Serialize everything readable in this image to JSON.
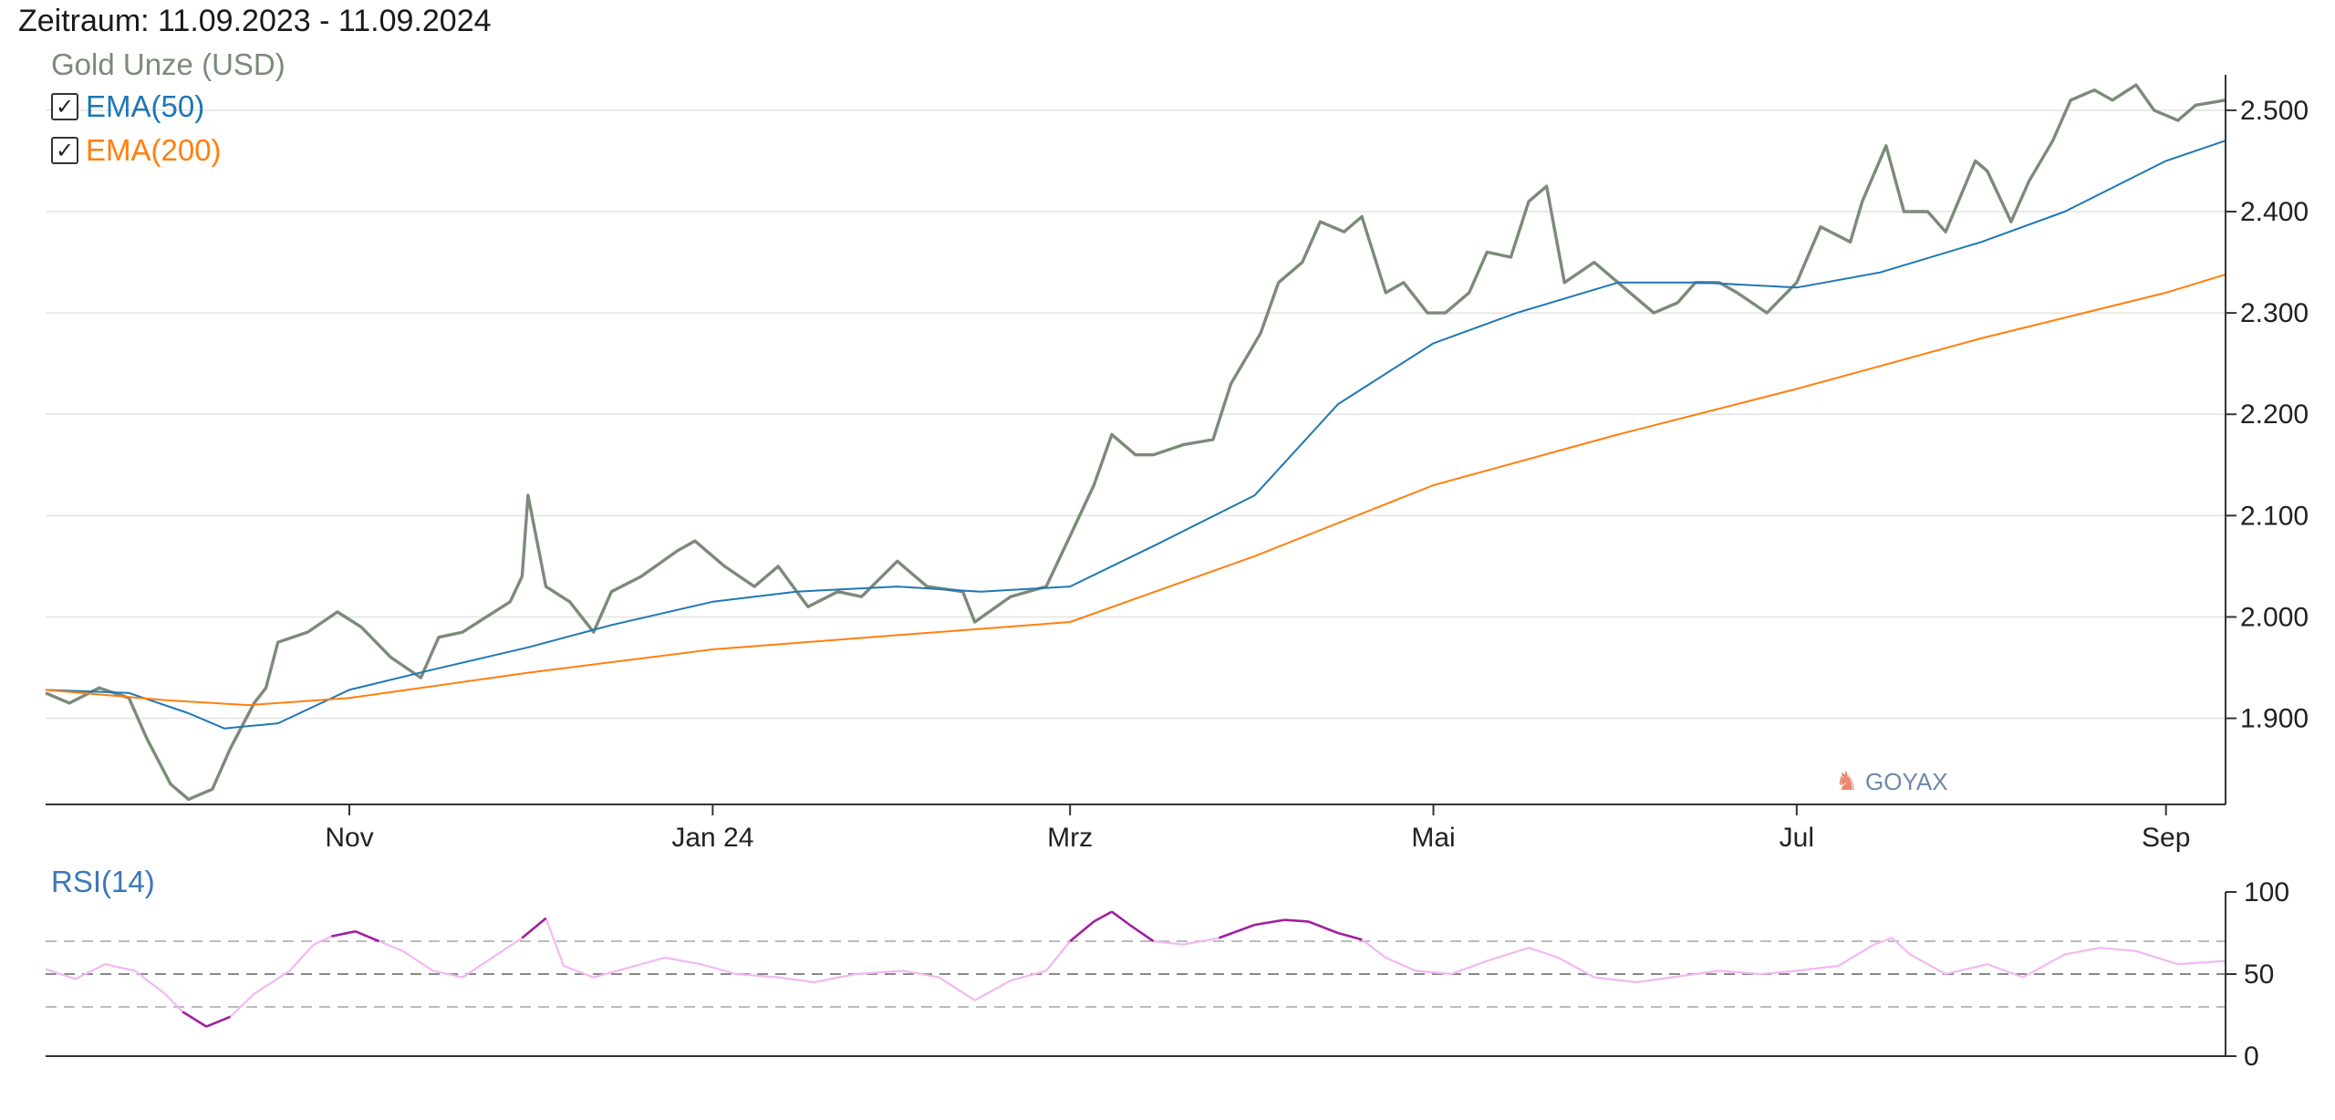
{
  "period_label": "Zeitraum: 11.09.2023 - 11.09.2024",
  "legend": {
    "main_series": {
      "label": "Gold Unze (USD)",
      "color": "#7c8a7a"
    },
    "ema50": {
      "label": "EMA(50)",
      "color": "#1f77b4",
      "checked": true
    },
    "ema200": {
      "label": "EMA(200)",
      "color": "#ff7f0e",
      "checked": true
    },
    "rsi": {
      "label": "RSI(14)",
      "color": "#3b78b8"
    }
  },
  "watermark": "GOYAX",
  "chart_data": [
    {
      "type": "line",
      "title": "",
      "ylim": [
        1815,
        2535
      ],
      "x_range": [
        "2023-09-11",
        "2024-09-11"
      ],
      "y_ticks": [
        {
          "value": 1900,
          "label": "1.900"
        },
        {
          "value": 2000,
          "label": "2.000"
        },
        {
          "value": 2100,
          "label": "2.100"
        },
        {
          "value": 2200,
          "label": "2.200"
        },
        {
          "value": 2300,
          "label": "2.300"
        },
        {
          "value": 2400,
          "label": "2.400"
        },
        {
          "value": 2500,
          "label": "2.500"
        }
      ],
      "x_ticks": [
        {
          "date": "2023-11-01",
          "label": "Nov"
        },
        {
          "date": "2024-01-01",
          "label": "Jan 24"
        },
        {
          "date": "2024-03-01",
          "label": "Mrz"
        },
        {
          "date": "2024-05-01",
          "label": "Mai"
        },
        {
          "date": "2024-07-01",
          "label": "Jul"
        },
        {
          "date": "2024-09-01",
          "label": "Sep"
        }
      ],
      "grid": true,
      "series": [
        {
          "name": "Gold Unze (USD)",
          "color": "#7c8a7a",
          "width": 3.4,
          "points": [
            [
              "2023-09-11",
              1925
            ],
            [
              "2023-09-15",
              1915
            ],
            [
              "2023-09-20",
              1930
            ],
            [
              "2023-09-25",
              1920
            ],
            [
              "2023-09-28",
              1880
            ],
            [
              "2023-10-02",
              1835
            ],
            [
              "2023-10-05",
              1820
            ],
            [
              "2023-10-09",
              1830
            ],
            [
              "2023-10-12",
              1870
            ],
            [
              "2023-10-16",
              1915
            ],
            [
              "2023-10-18",
              1930
            ],
            [
              "2023-10-20",
              1975
            ],
            [
              "2023-10-25",
              1985
            ],
            [
              "2023-10-30",
              2005
            ],
            [
              "2023-11-03",
              1990
            ],
            [
              "2023-11-08",
              1960
            ],
            [
              "2023-11-13",
              1940
            ],
            [
              "2023-11-16",
              1980
            ],
            [
              "2023-11-20",
              1985
            ],
            [
              "2023-11-24",
              2000
            ],
            [
              "2023-11-28",
              2015
            ],
            [
              "2023-11-30",
              2040
            ],
            [
              "2023-12-01",
              2120
            ],
            [
              "2023-12-04",
              2030
            ],
            [
              "2023-12-08",
              2015
            ],
            [
              "2023-12-12",
              1985
            ],
            [
              "2023-12-15",
              2025
            ],
            [
              "2023-12-20",
              2040
            ],
            [
              "2023-12-26",
              2065
            ],
            [
              "2023-12-29",
              2075
            ],
            [
              "2024-01-03",
              2050
            ],
            [
              "2024-01-08",
              2030
            ],
            [
              "2024-01-12",
              2050
            ],
            [
              "2024-01-17",
              2010
            ],
            [
              "2024-01-22",
              2025
            ],
            [
              "2024-01-26",
              2020
            ],
            [
              "2024-02-01",
              2055
            ],
            [
              "2024-02-06",
              2030
            ],
            [
              "2024-02-12",
              2025
            ],
            [
              "2024-02-14",
              1995
            ],
            [
              "2024-02-20",
              2020
            ],
            [
              "2024-02-26",
              2030
            ],
            [
              "2024-03-01",
              2080
            ],
            [
              "2024-03-05",
              2130
            ],
            [
              "2024-03-08",
              2180
            ],
            [
              "2024-03-12",
              2160
            ],
            [
              "2024-03-15",
              2160
            ],
            [
              "2024-03-20",
              2170
            ],
            [
              "2024-03-25",
              2175
            ],
            [
              "2024-03-28",
              2230
            ],
            [
              "2024-04-02",
              2280
            ],
            [
              "2024-04-05",
              2330
            ],
            [
              "2024-04-09",
              2350
            ],
            [
              "2024-04-12",
              2390
            ],
            [
              "2024-04-16",
              2380
            ],
            [
              "2024-04-19",
              2395
            ],
            [
              "2024-04-23",
              2320
            ],
            [
              "2024-04-26",
              2330
            ],
            [
              "2024-04-30",
              2300
            ],
            [
              "2024-05-03",
              2300
            ],
            [
              "2024-05-07",
              2320
            ],
            [
              "2024-05-10",
              2360
            ],
            [
              "2024-05-14",
              2355
            ],
            [
              "2024-05-17",
              2410
            ],
            [
              "2024-05-20",
              2425
            ],
            [
              "2024-05-23",
              2330
            ],
            [
              "2024-05-28",
              2350
            ],
            [
              "2024-06-03",
              2320
            ],
            [
              "2024-06-07",
              2300
            ],
            [
              "2024-06-11",
              2310
            ],
            [
              "2024-06-14",
              2330
            ],
            [
              "2024-06-18",
              2330
            ],
            [
              "2024-06-21",
              2320
            ],
            [
              "2024-06-26",
              2300
            ],
            [
              "2024-07-01",
              2330
            ],
            [
              "2024-07-05",
              2385
            ],
            [
              "2024-07-10",
              2370
            ],
            [
              "2024-07-12",
              2410
            ],
            [
              "2024-07-16",
              2465
            ],
            [
              "2024-07-19",
              2400
            ],
            [
              "2024-07-23",
              2400
            ],
            [
              "2024-07-26",
              2380
            ],
            [
              "2024-07-31",
              2450
            ],
            [
              "2024-08-02",
              2440
            ],
            [
              "2024-08-06",
              2390
            ],
            [
              "2024-08-09",
              2430
            ],
            [
              "2024-08-13",
              2470
            ],
            [
              "2024-08-16",
              2510
            ],
            [
              "2024-08-20",
              2520
            ],
            [
              "2024-08-23",
              2510
            ],
            [
              "2024-08-27",
              2525
            ],
            [
              "2024-08-30",
              2500
            ],
            [
              "2024-09-03",
              2490
            ],
            [
              "2024-09-06",
              2505
            ],
            [
              "2024-09-11",
              2510
            ]
          ]
        },
        {
          "name": "EMA(50)",
          "color": "#1f77b4",
          "width": 2,
          "points": [
            [
              "2023-09-11",
              1928
            ],
            [
              "2023-09-25",
              1925
            ],
            [
              "2023-10-05",
              1905
            ],
            [
              "2023-10-11",
              1890
            ],
            [
              "2023-10-20",
              1895
            ],
            [
              "2023-11-01",
              1928
            ],
            [
              "2023-11-15",
              1948
            ],
            [
              "2023-12-01",
              1970
            ],
            [
              "2023-12-15",
              1992
            ],
            [
              "2024-01-01",
              2015
            ],
            [
              "2024-01-15",
              2025
            ],
            [
              "2024-02-01",
              2030
            ],
            [
              "2024-02-15",
              2025
            ],
            [
              "2024-03-01",
              2030
            ],
            [
              "2024-03-15",
              2070
            ],
            [
              "2024-04-01",
              2120
            ],
            [
              "2024-04-15",
              2210
            ],
            [
              "2024-05-01",
              2270
            ],
            [
              "2024-05-15",
              2300
            ],
            [
              "2024-06-01",
              2330
            ],
            [
              "2024-06-15",
              2330
            ],
            [
              "2024-07-01",
              2325
            ],
            [
              "2024-07-15",
              2340
            ],
            [
              "2024-08-01",
              2370
            ],
            [
              "2024-08-15",
              2400
            ],
            [
              "2024-09-01",
              2450
            ],
            [
              "2024-09-11",
              2470
            ]
          ]
        },
        {
          "name": "EMA(200)",
          "color": "#ff7f0e",
          "width": 2,
          "points": [
            [
              "2023-09-11",
              1928
            ],
            [
              "2023-10-01",
              1918
            ],
            [
              "2023-10-15",
              1913
            ],
            [
              "2023-11-01",
              1920
            ],
            [
              "2023-12-01",
              1945
            ],
            [
              "2024-01-01",
              1968
            ],
            [
              "2024-02-01",
              1982
            ],
            [
              "2024-03-01",
              1995
            ],
            [
              "2024-04-01",
              2060
            ],
            [
              "2024-05-01",
              2130
            ],
            [
              "2024-06-01",
              2180
            ],
            [
              "2024-07-01",
              2225
            ],
            [
              "2024-08-01",
              2275
            ],
            [
              "2024-09-01",
              2320
            ],
            [
              "2024-09-11",
              2338
            ]
          ]
        }
      ]
    },
    {
      "type": "line",
      "title": "",
      "ylim": [
        0,
        100
      ],
      "x_range": [
        "2023-09-11",
        "2024-09-11"
      ],
      "y_ticks": [
        {
          "value": 0,
          "label": "0"
        },
        {
          "value": 50,
          "label": "50"
        },
        {
          "value": 100,
          "label": "100"
        }
      ],
      "reference_lines": [
        30,
        50,
        70
      ],
      "series": [
        {
          "name": "RSI(14)",
          "color": "#f2b8f2",
          "overbought_color": "#a020a0",
          "oversold_color": "#a020a0",
          "points": [
            [
              "2023-09-11",
              53
            ],
            [
              "2023-09-16",
              47
            ],
            [
              "2023-09-21",
              56
            ],
            [
              "2023-09-26",
              52
            ],
            [
              "2023-10-01",
              38
            ],
            [
              "2023-10-04",
              27
            ],
            [
              "2023-10-08",
              18
            ],
            [
              "2023-10-12",
              24
            ],
            [
              "2023-10-16",
              38
            ],
            [
              "2023-10-22",
              52
            ],
            [
              "2023-10-26",
              68
            ],
            [
              "2023-10-29",
              73
            ],
            [
              "2023-11-02",
              76
            ],
            [
              "2023-11-06",
              70
            ],
            [
              "2023-11-10",
              64
            ],
            [
              "2023-11-15",
              52
            ],
            [
              "2023-11-20",
              48
            ],
            [
              "2023-11-25",
              60
            ],
            [
              "2023-11-30",
              72
            ],
            [
              "2023-12-04",
              84
            ],
            [
              "2023-12-07",
              55
            ],
            [
              "2023-12-12",
              48
            ],
            [
              "2023-12-18",
              54
            ],
            [
              "2023-12-24",
              60
            ],
            [
              "2023-12-30",
              56
            ],
            [
              "2024-01-05",
              50
            ],
            [
              "2024-01-12",
              48
            ],
            [
              "2024-01-18",
              45
            ],
            [
              "2024-01-25",
              50
            ],
            [
              "2024-02-02",
              52
            ],
            [
              "2024-02-08",
              48
            ],
            [
              "2024-02-14",
              34
            ],
            [
              "2024-02-20",
              46
            ],
            [
              "2024-02-26",
              52
            ],
            [
              "2024-03-01",
              70
            ],
            [
              "2024-03-05",
              82
            ],
            [
              "2024-03-08",
              88
            ],
            [
              "2024-03-11",
              80
            ],
            [
              "2024-03-15",
              70
            ],
            [
              "2024-03-20",
              68
            ],
            [
              "2024-03-26",
              72
            ],
            [
              "2024-04-01",
              80
            ],
            [
              "2024-04-06",
              83
            ],
            [
              "2024-04-10",
              82
            ],
            [
              "2024-04-15",
              75
            ],
            [
              "2024-04-19",
              71
            ],
            [
              "2024-04-23",
              60
            ],
            [
              "2024-04-28",
              52
            ],
            [
              "2024-05-04",
              50
            ],
            [
              "2024-05-10",
              58
            ],
            [
              "2024-05-17",
              66
            ],
            [
              "2024-05-22",
              60
            ],
            [
              "2024-05-28",
              48
            ],
            [
              "2024-06-04",
              45
            ],
            [
              "2024-06-10",
              48
            ],
            [
              "2024-06-18",
              52
            ],
            [
              "2024-06-25",
              50
            ],
            [
              "2024-07-01",
              52
            ],
            [
              "2024-07-08",
              55
            ],
            [
              "2024-07-14",
              68
            ],
            [
              "2024-07-17",
              72
            ],
            [
              "2024-07-20",
              62
            ],
            [
              "2024-07-26",
              50
            ],
            [
              "2024-08-02",
              56
            ],
            [
              "2024-08-08",
              48
            ],
            [
              "2024-08-15",
              62
            ],
            [
              "2024-08-21",
              66
            ],
            [
              "2024-08-27",
              64
            ],
            [
              "2024-09-03",
              56
            ],
            [
              "2024-09-11",
              58
            ]
          ]
        }
      ]
    }
  ]
}
